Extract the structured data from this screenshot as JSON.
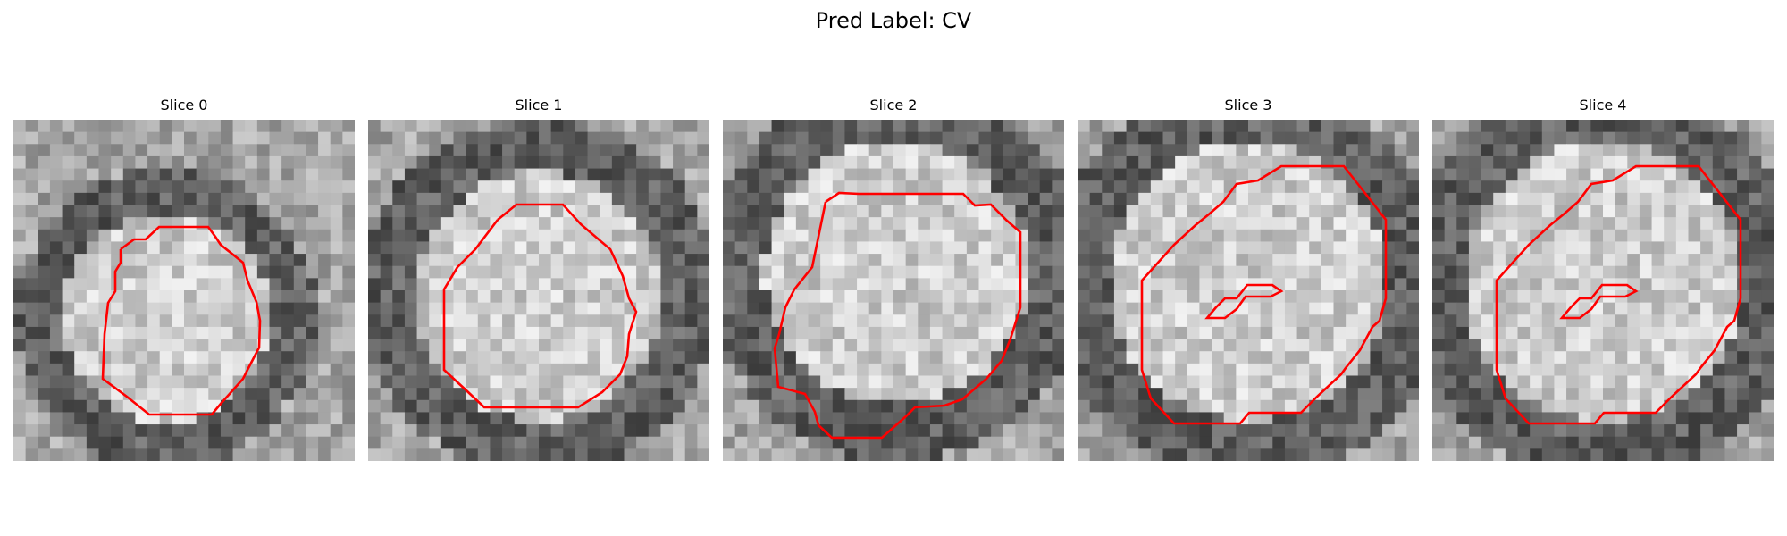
{
  "figure": {
    "title": "Pred Label: CV",
    "contour_color": "#ff0000",
    "colormap": "grayscale"
  },
  "panels": [
    {
      "title": "Slice 0"
    },
    {
      "title": "Slice 1"
    },
    {
      "title": "Slice 2"
    },
    {
      "title": "Slice 3"
    },
    {
      "title": "Slice 4"
    }
  ]
}
